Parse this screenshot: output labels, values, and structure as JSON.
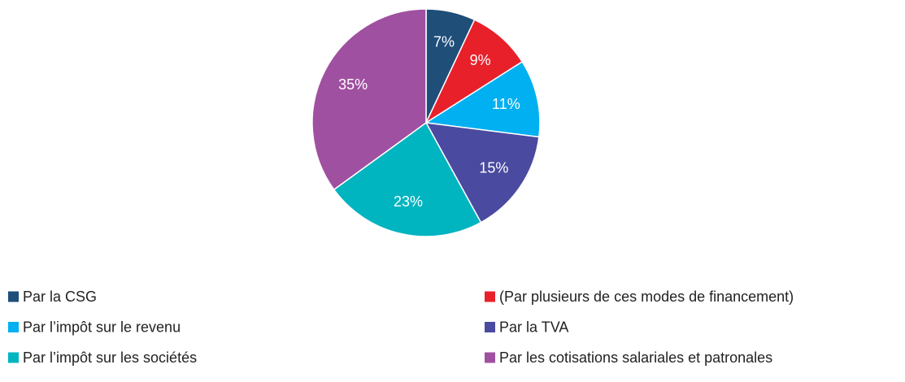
{
  "chart_data": {
    "type": "pie",
    "categories": [
      "Par la CSG",
      "(Par plusieurs de ces modes de financement)",
      "Par l’impôt sur le revenu",
      "Par la TVA",
      "Par l’impôt sur les sociétés",
      "Par les cotisations salariales et patronales"
    ],
    "values": [
      7,
      9,
      11,
      15,
      23,
      35
    ],
    "value_labels": [
      "7%",
      "9%",
      "11%",
      "15%",
      "23%",
      "35%"
    ],
    "colors": [
      "#1f4e79",
      "#e8202a",
      "#00b0f0",
      "#4a4aa0",
      "#00b4c0",
      "#a050a0"
    ]
  }
}
